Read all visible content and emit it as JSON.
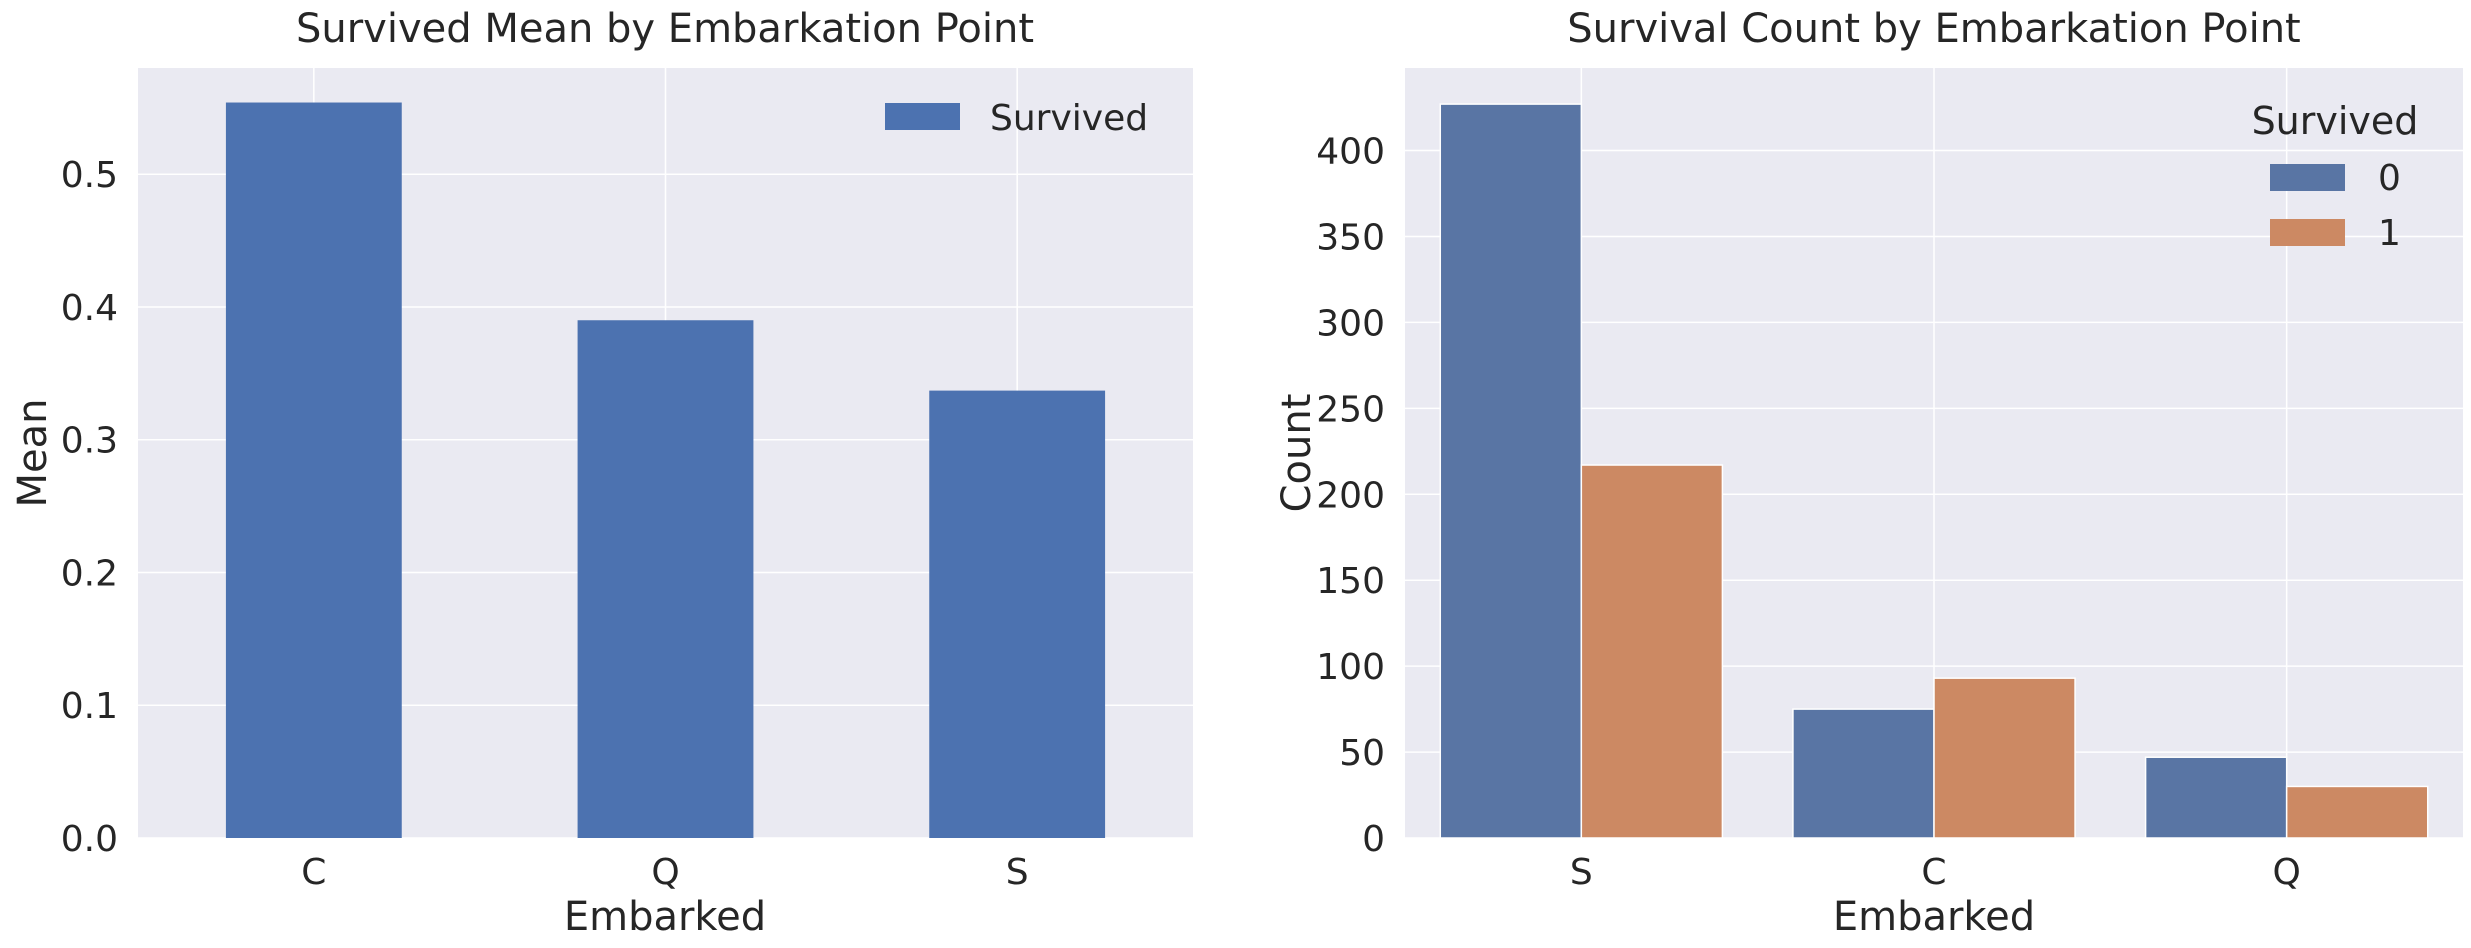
{
  "chart_data": [
    {
      "type": "bar",
      "title": "Survived Mean by Embarkation Point",
      "xlabel": "Embarked",
      "ylabel": "Mean",
      "categories": [
        "C",
        "Q",
        "S"
      ],
      "series": [
        {
          "name": "Survived",
          "values": [
            0.554,
            0.39,
            0.337
          ],
          "color": "#4c72b0"
        }
      ],
      "ylim": [
        0,
        0.58
      ],
      "yticks": [
        "0.0",
        "0.1",
        "0.2",
        "0.3",
        "0.4",
        "0.5"
      ],
      "grid": true,
      "legend": {
        "placement": "top-right"
      },
      "background": "#eaeaf2"
    },
    {
      "type": "bar",
      "title": "Survival Count by Embarkation Point",
      "xlabel": "Embarked",
      "ylabel": "Count",
      "categories": [
        "S",
        "C",
        "Q"
      ],
      "series": [
        {
          "name": "0",
          "values": [
            427,
            75,
            47
          ],
          "color": "#5975a4"
        },
        {
          "name": "1",
          "values": [
            217,
            93,
            30
          ],
          "color": "#cc8963"
        }
      ],
      "ylim": [
        0,
        448
      ],
      "yticks": [
        "0",
        "50",
        "100",
        "150",
        "200",
        "250",
        "300",
        "350",
        "400"
      ],
      "grid": true,
      "legend": {
        "title": "Survived",
        "placement": "top-right"
      },
      "background": "#eaeaf2"
    }
  ]
}
